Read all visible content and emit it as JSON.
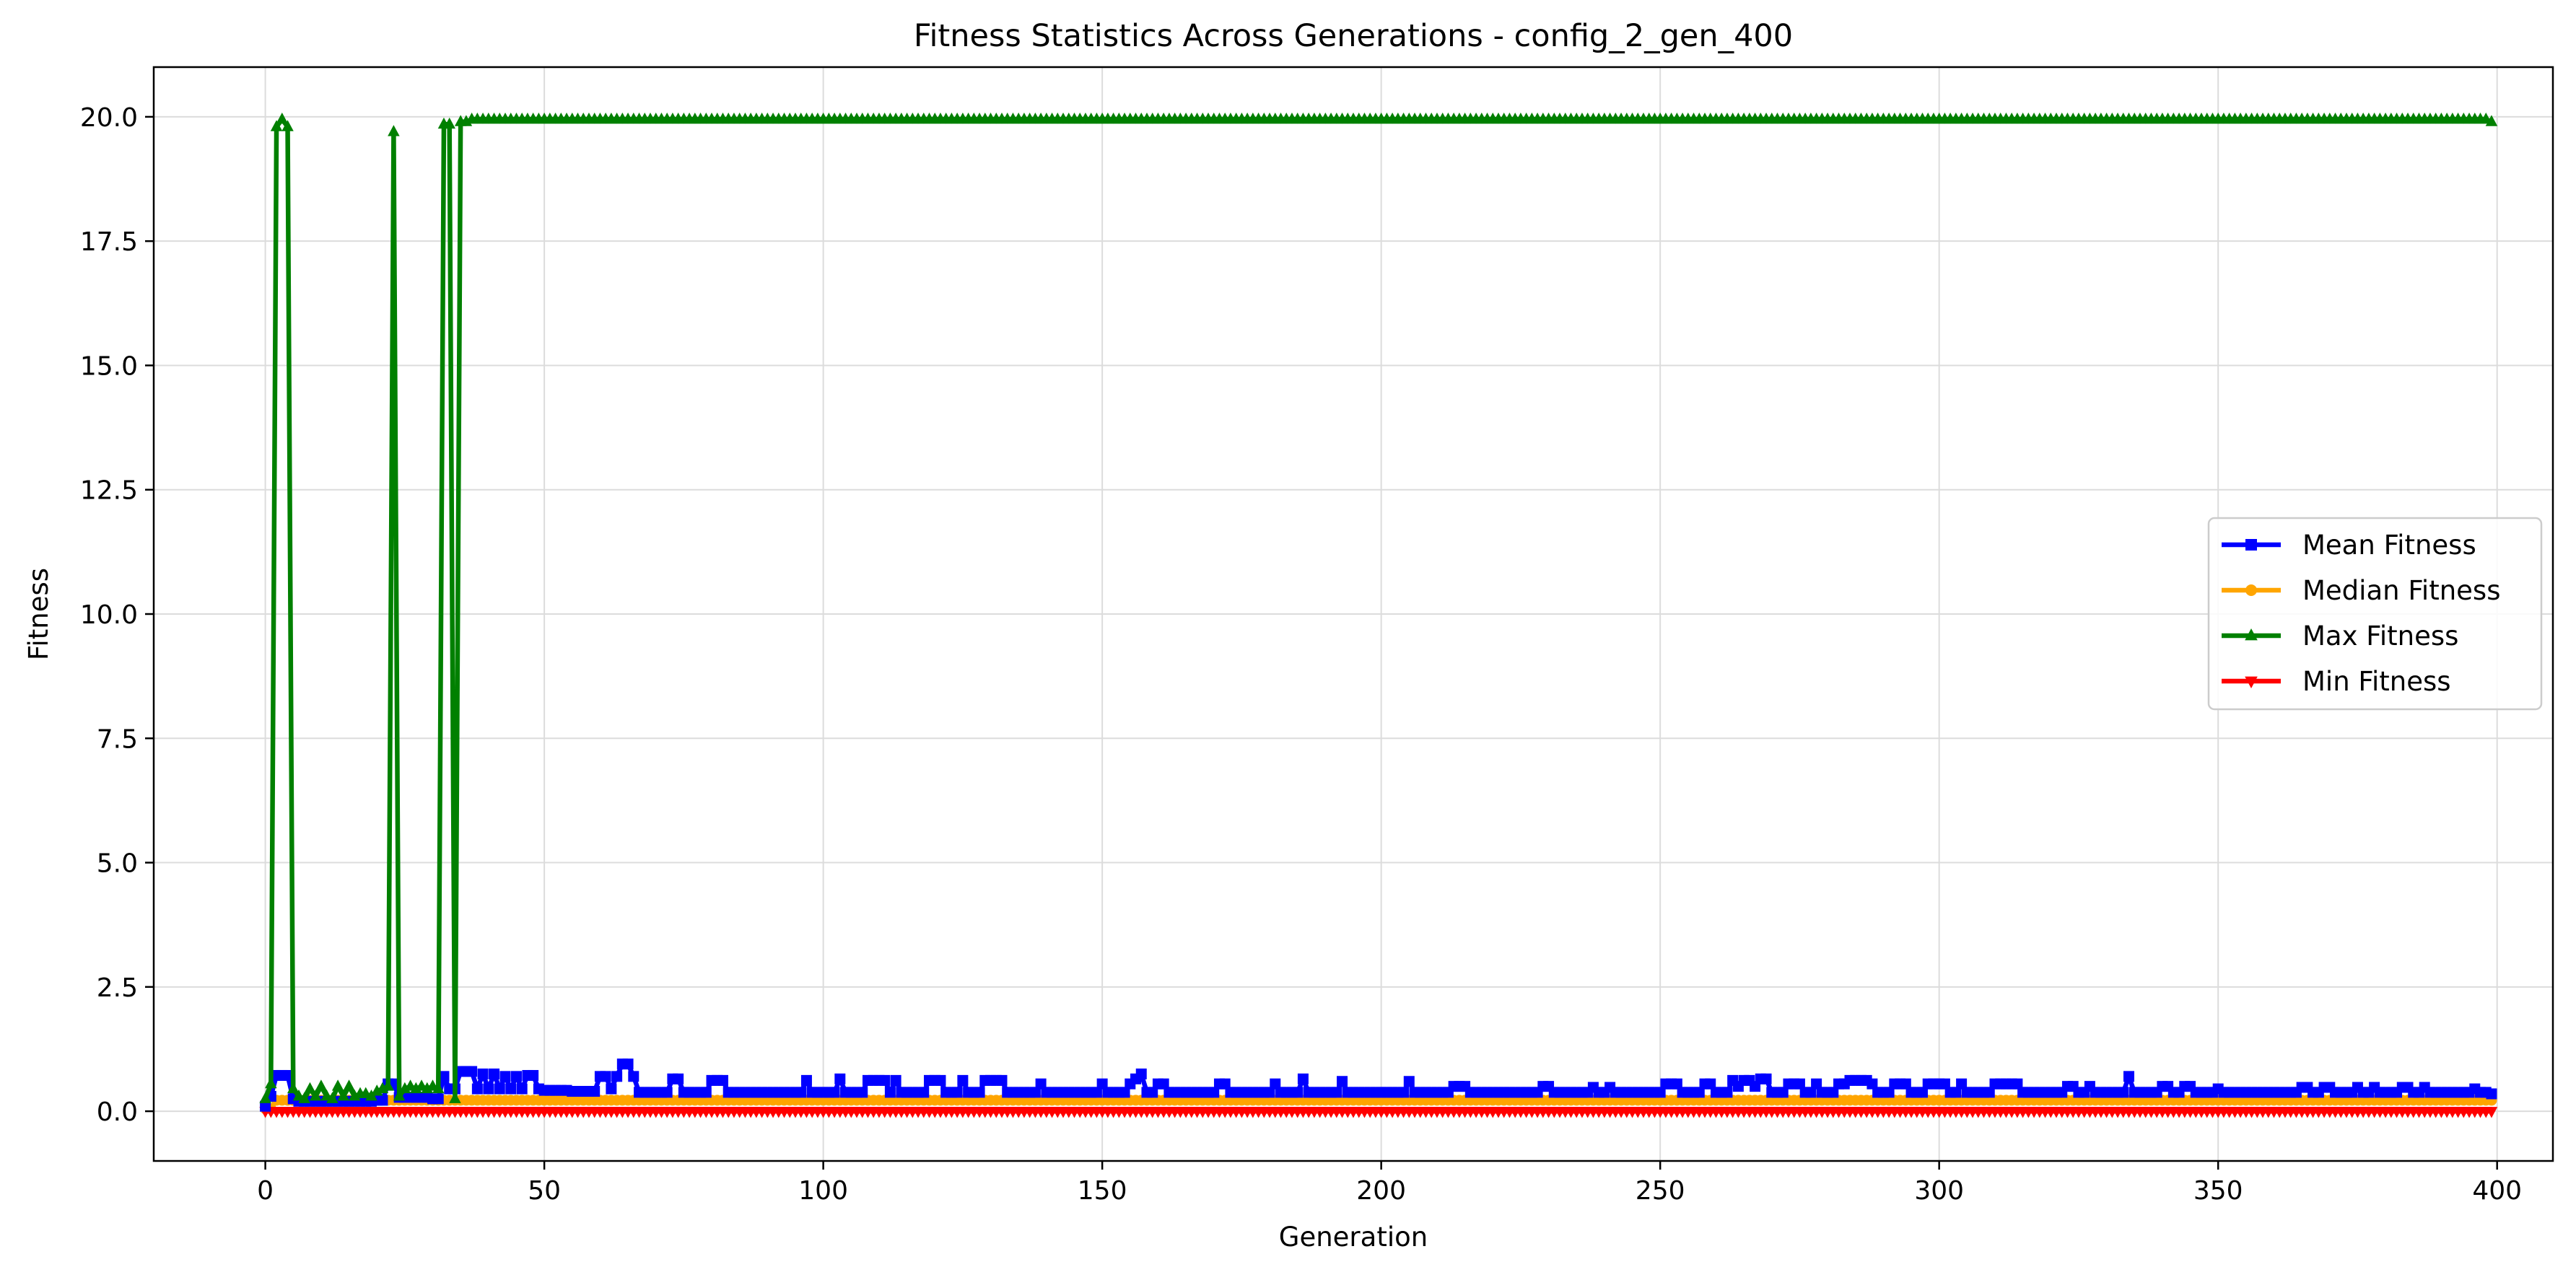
{
  "chart_data": {
    "type": "line",
    "title": "Fitness Statistics Across Generations - config_2_gen_400",
    "xlabel": "Generation",
    "ylabel": "Fitness",
    "xlim": [
      -20,
      410
    ],
    "ylim": [
      -1.0,
      21.0
    ],
    "xticks": [
      0,
      50,
      100,
      150,
      200,
      250,
      300,
      350,
      400
    ],
    "yticks": [
      0.0,
      2.5,
      5.0,
      7.5,
      10.0,
      12.5,
      15.0,
      17.5,
      20.0
    ],
    "ytick_labels": [
      "0.0",
      "2.5",
      "5.0",
      "7.5",
      "10.0",
      "12.5",
      "15.0",
      "17.5",
      "20.0"
    ],
    "grid": true,
    "legend_position": "center-right",
    "n_generations": 400,
    "series": [
      {
        "name": "Mean Fitness",
        "color": "#0000ff",
        "marker": "square",
        "base_value": 0.38,
        "points": [
          [
            0,
            0.1
          ],
          [
            1,
            0.3
          ],
          [
            2,
            0.72
          ],
          [
            3,
            0.72
          ],
          [
            4,
            0.72
          ],
          [
            5,
            0.25
          ],
          [
            6,
            0.2
          ],
          [
            10,
            0.2
          ],
          [
            20,
            0.22
          ],
          [
            22,
            0.55
          ],
          [
            23,
            0.55
          ],
          [
            24,
            0.28
          ],
          [
            30,
            0.25
          ],
          [
            32,
            0.7
          ],
          [
            33,
            0.45
          ],
          [
            35,
            0.8
          ],
          [
            37,
            0.8
          ],
          [
            38,
            0.45
          ],
          [
            39,
            0.75
          ],
          [
            40,
            0.45
          ],
          [
            41,
            0.75
          ],
          [
            42,
            0.45
          ],
          [
            43,
            0.7
          ],
          [
            44,
            0.45
          ],
          [
            45,
            0.7
          ],
          [
            46,
            0.45
          ],
          [
            47,
            0.72
          ],
          [
            48,
            0.72
          ],
          [
            49,
            0.45
          ],
          [
            50,
            0.42
          ],
          [
            55,
            0.4
          ],
          [
            59,
            0.4
          ],
          [
            60,
            0.7
          ],
          [
            61,
            0.7
          ],
          [
            62,
            0.45
          ],
          [
            63,
            0.7
          ],
          [
            64,
            0.95
          ],
          [
            65,
            0.95
          ],
          [
            66,
            0.7
          ],
          [
            67,
            0.38
          ],
          [
            70,
            0.38
          ],
          [
            73,
            0.65
          ],
          [
            74,
            0.65
          ],
          [
            75,
            0.38
          ],
          [
            80,
            0.62
          ],
          [
            81,
            0.62
          ],
          [
            82,
            0.62
          ],
          [
            83,
            0.38
          ],
          [
            97,
            0.62
          ],
          [
            98,
            0.38
          ],
          [
            103,
            0.65
          ],
          [
            104,
            0.38
          ],
          [
            108,
            0.62
          ],
          [
            109,
            0.62
          ],
          [
            110,
            0.62
          ],
          [
            111,
            0.62
          ],
          [
            112,
            0.38
          ],
          [
            113,
            0.62
          ],
          [
            114,
            0.38
          ],
          [
            119,
            0.62
          ],
          [
            120,
            0.62
          ],
          [
            121,
            0.62
          ],
          [
            122,
            0.38
          ],
          [
            125,
            0.62
          ],
          [
            126,
            0.38
          ],
          [
            129,
            0.62
          ],
          [
            130,
            0.62
          ],
          [
            131,
            0.62
          ],
          [
            132,
            0.62
          ],
          [
            133,
            0.38
          ],
          [
            139,
            0.55
          ],
          [
            140,
            0.38
          ],
          [
            150,
            0.55
          ],
          [
            151,
            0.38
          ],
          [
            155,
            0.55
          ],
          [
            156,
            0.65
          ],
          [
            157,
            0.75
          ],
          [
            158,
            0.38
          ],
          [
            160,
            0.55
          ],
          [
            161,
            0.55
          ],
          [
            162,
            0.38
          ],
          [
            171,
            0.55
          ],
          [
            172,
            0.55
          ],
          [
            173,
            0.38
          ],
          [
            181,
            0.55
          ],
          [
            182,
            0.38
          ],
          [
            186,
            0.65
          ],
          [
            187,
            0.38
          ],
          [
            193,
            0.6
          ],
          [
            194,
            0.38
          ],
          [
            205,
            0.6
          ],
          [
            206,
            0.38
          ],
          [
            213,
            0.5
          ],
          [
            214,
            0.5
          ],
          [
            215,
            0.5
          ],
          [
            216,
            0.38
          ],
          [
            229,
            0.5
          ],
          [
            230,
            0.5
          ],
          [
            231,
            0.38
          ],
          [
            238,
            0.48
          ],
          [
            239,
            0.38
          ],
          [
            241,
            0.48
          ],
          [
            242,
            0.38
          ],
          [
            251,
            0.55
          ],
          [
            252,
            0.55
          ],
          [
            253,
            0.55
          ],
          [
            254,
            0.38
          ],
          [
            258,
            0.55
          ],
          [
            259,
            0.55
          ],
          [
            260,
            0.38
          ],
          [
            263,
            0.62
          ],
          [
            264,
            0.5
          ],
          [
            265,
            0.62
          ],
          [
            266,
            0.62
          ],
          [
            267,
            0.5
          ],
          [
            268,
            0.65
          ],
          [
            269,
            0.65
          ],
          [
            270,
            0.38
          ],
          [
            273,
            0.55
          ],
          [
            274,
            0.55
          ],
          [
            275,
            0.55
          ],
          [
            276,
            0.38
          ],
          [
            278,
            0.55
          ],
          [
            279,
            0.38
          ],
          [
            282,
            0.55
          ],
          [
            283,
            0.55
          ],
          [
            284,
            0.62
          ],
          [
            285,
            0.62
          ],
          [
            286,
            0.62
          ],
          [
            287,
            0.62
          ],
          [
            288,
            0.55
          ],
          [
            289,
            0.38
          ],
          [
            292,
            0.55
          ],
          [
            293,
            0.55
          ],
          [
            294,
            0.55
          ],
          [
            295,
            0.38
          ],
          [
            298,
            0.55
          ],
          [
            299,
            0.55
          ],
          [
            300,
            0.55
          ],
          [
            301,
            0.55
          ],
          [
            302,
            0.38
          ],
          [
            304,
            0.55
          ],
          [
            305,
            0.38
          ],
          [
            310,
            0.55
          ],
          [
            311,
            0.55
          ],
          [
            312,
            0.55
          ],
          [
            313,
            0.55
          ],
          [
            314,
            0.55
          ],
          [
            315,
            0.38
          ],
          [
            323,
            0.5
          ],
          [
            324,
            0.5
          ],
          [
            325,
            0.38
          ],
          [
            327,
            0.5
          ],
          [
            328,
            0.38
          ],
          [
            334,
            0.7
          ],
          [
            335,
            0.38
          ],
          [
            340,
            0.5
          ],
          [
            341,
            0.5
          ],
          [
            342,
            0.38
          ],
          [
            344,
            0.5
          ],
          [
            345,
            0.5
          ],
          [
            346,
            0.38
          ],
          [
            350,
            0.45
          ],
          [
            351,
            0.38
          ],
          [
            365,
            0.48
          ],
          [
            366,
            0.48
          ],
          [
            367,
            0.38
          ],
          [
            369,
            0.48
          ],
          [
            370,
            0.48
          ],
          [
            371,
            0.38
          ],
          [
            375,
            0.48
          ],
          [
            376,
            0.38
          ],
          [
            378,
            0.48
          ],
          [
            379,
            0.38
          ],
          [
            383,
            0.48
          ],
          [
            384,
            0.48
          ],
          [
            385,
            0.38
          ],
          [
            387,
            0.48
          ],
          [
            388,
            0.38
          ],
          [
            396,
            0.45
          ],
          [
            397,
            0.38
          ],
          [
            399,
            0.35
          ]
        ]
      },
      {
        "name": "Median Fitness",
        "color": "#ffa500",
        "marker": "circle",
        "base_value": 0.22,
        "points": [
          [
            0,
            0.05
          ],
          [
            2,
            0.22
          ],
          [
            399,
            0.22
          ]
        ]
      },
      {
        "name": "Max Fitness",
        "color": "#008000",
        "marker": "triangle-up",
        "base_value": 19.9,
        "points": [
          [
            0,
            0.25
          ],
          [
            1,
            0.55
          ],
          [
            2,
            19.8
          ],
          [
            3,
            19.95
          ],
          [
            4,
            19.8
          ],
          [
            5,
            0.45
          ],
          [
            6,
            0.3
          ],
          [
            7,
            0.25
          ],
          [
            8,
            0.45
          ],
          [
            9,
            0.3
          ],
          [
            10,
            0.5
          ],
          [
            11,
            0.3
          ],
          [
            12,
            0.25
          ],
          [
            13,
            0.5
          ],
          [
            14,
            0.3
          ],
          [
            15,
            0.5
          ],
          [
            16,
            0.3
          ],
          [
            17,
            0.35
          ],
          [
            18,
            0.35
          ],
          [
            19,
            0.3
          ],
          [
            20,
            0.4
          ],
          [
            21,
            0.45
          ],
          [
            22,
            0.5
          ],
          [
            23,
            19.7
          ],
          [
            24,
            0.3
          ],
          [
            25,
            0.45
          ],
          [
            26,
            0.5
          ],
          [
            27,
            0.45
          ],
          [
            28,
            0.5
          ],
          [
            29,
            0.45
          ],
          [
            30,
            0.5
          ],
          [
            31,
            0.45
          ],
          [
            32,
            19.85
          ],
          [
            33,
            19.85
          ],
          [
            34,
            0.25
          ],
          [
            35,
            19.9
          ],
          [
            36,
            19.9
          ],
          [
            37,
            19.95
          ],
          [
            399,
            19.9
          ]
        ]
      },
      {
        "name": "Min Fitness",
        "color": "#ff0000",
        "marker": "triangle-down",
        "base_value": 0.0,
        "points": [
          [
            0,
            0.0
          ],
          [
            399,
            0.0
          ]
        ]
      }
    ]
  }
}
